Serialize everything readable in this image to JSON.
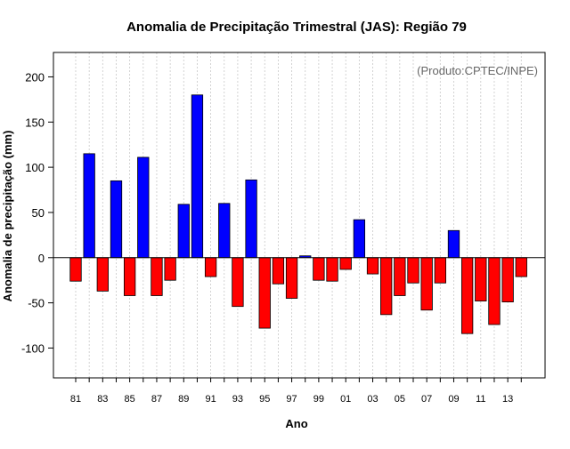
{
  "chart_data": {
    "type": "bar",
    "title": "Anomalia de Precipitação Trimestral (JAS): Região 79",
    "annotation": "(Produto:CPTEC/INPE)",
    "xlabel": "Ano",
    "ylabel": "Anomalia de precipitação (mm)",
    "ylim": [
      -133,
      227
    ],
    "yticks": [
      -100,
      -50,
      0,
      50,
      100,
      150,
      200
    ],
    "grid": true,
    "colors": {
      "positive": "#0000ff",
      "negative": "#ff0000",
      "grid": "#c8c8c8",
      "axis": "#000000"
    },
    "categories": [
      "81",
      "82",
      "83",
      "84",
      "85",
      "86",
      "87",
      "88",
      "89",
      "90",
      "91",
      "92",
      "93",
      "94",
      "95",
      "96",
      "97",
      "98",
      "99",
      "00",
      "01",
      "02",
      "03",
      "04",
      "05",
      "06",
      "07",
      "08",
      "09",
      "10",
      "11",
      "12",
      "13",
      "14"
    ],
    "xtick_labels": [
      "81",
      "83",
      "85",
      "87",
      "89",
      "91",
      "93",
      "95",
      "97",
      "99",
      "01",
      "03",
      "05",
      "07",
      "09",
      "11",
      "13"
    ],
    "values": [
      -26,
      115,
      -37,
      85,
      -42,
      111,
      -42,
      -25,
      59,
      180,
      -21,
      60,
      -54,
      86,
      -78,
      -29,
      -45,
      2,
      -25,
      -26,
      -13,
      42,
      -18,
      -63,
      -42,
      -28,
      -58,
      -28,
      30,
      -84,
      -48,
      -74,
      -49,
      -21
    ]
  }
}
